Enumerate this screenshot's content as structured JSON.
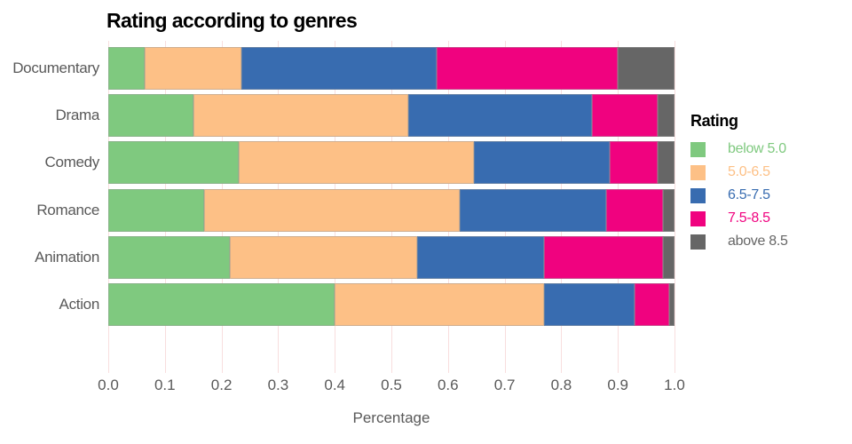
{
  "chart_data": {
    "type": "bar",
    "orientation": "horizontal",
    "stacked": true,
    "title": "Rating according to genres",
    "xlabel": "Percentage",
    "ylabel": "",
    "xlim": [
      0.0,
      1.0
    ],
    "grid": {
      "on": true,
      "color": "#f8dede",
      "direction": "vertical"
    },
    "legend_position": "right",
    "legend_title": "Rating",
    "categories": [
      "Documentary",
      "Drama",
      "Comedy",
      "Romance",
      "Animation",
      "Action"
    ],
    "x_ticks": [
      0.0,
      0.1,
      0.2,
      0.3,
      0.4,
      0.5,
      0.6,
      0.7,
      0.8,
      0.9,
      1.0
    ],
    "x_tick_labels": [
      "0.0",
      "0.1",
      "0.2",
      "0.3",
      "0.4",
      "0.5",
      "0.6",
      "0.7",
      "0.8",
      "0.9",
      "1.0"
    ],
    "series": [
      {
        "name": "below 5.0",
        "color": "#7FC97F",
        "values": [
          0.065,
          0.15,
          0.23,
          0.17,
          0.215,
          0.4
        ]
      },
      {
        "name": "5.0-6.5",
        "color": "#FDC086",
        "values": [
          0.17,
          0.38,
          0.415,
          0.45,
          0.33,
          0.37
        ]
      },
      {
        "name": "6.5-7.5",
        "color": "#386CB0",
        "values": [
          0.345,
          0.325,
          0.24,
          0.26,
          0.225,
          0.16
        ]
      },
      {
        "name": "7.5-8.5",
        "color": "#F0027F",
        "values": [
          0.32,
          0.115,
          0.085,
          0.1,
          0.21,
          0.06
        ]
      },
      {
        "name": "above 8.5",
        "color": "#666666",
        "values": [
          0.1,
          0.03,
          0.03,
          0.02,
          0.02,
          0.01
        ]
      }
    ],
    "text_colors": {
      "title": "#000000",
      "axis": "#595959"
    }
  }
}
